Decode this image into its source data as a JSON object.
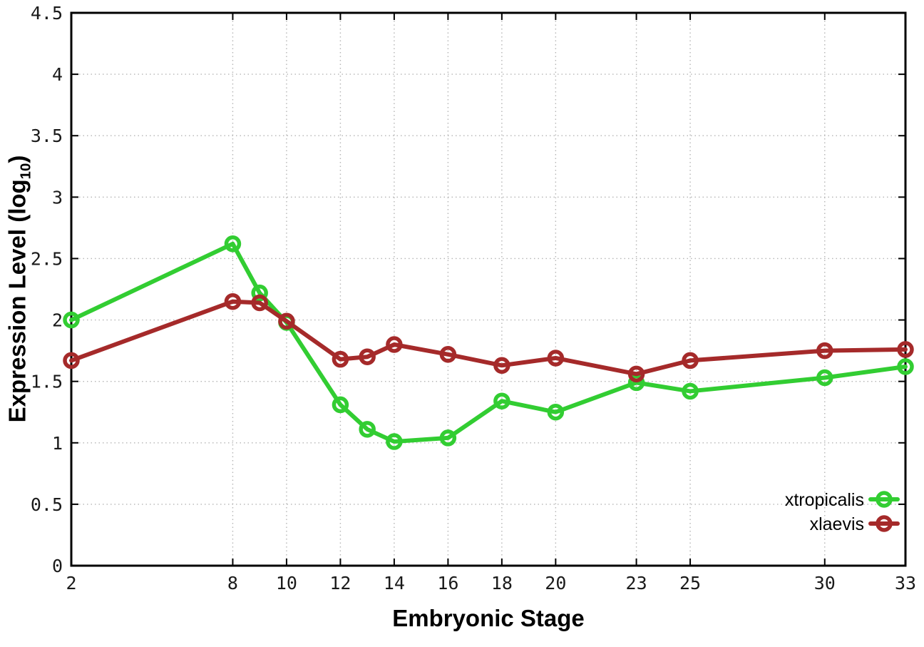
{
  "labels": {
    "xlabel": "Embryonic Stage",
    "ylabel_pre": "Expression Level (log",
    "ylabel_sub": "10",
    "ylabel_post": ")"
  },
  "chart_data": {
    "type": "line",
    "title": "",
    "xlabel": "Embryonic Stage",
    "ylabel": "Expression Level (log10)",
    "xlim": [
      2,
      33
    ],
    "ylim": [
      0,
      4.5
    ],
    "grid": true,
    "legend_position": "bottom-right-inside",
    "x_ticks": [
      2,
      8,
      10,
      12,
      14,
      16,
      18,
      20,
      23,
      25,
      30,
      33
    ],
    "y_ticks": [
      0,
      0.5,
      1,
      1.5,
      2,
      2.5,
      3,
      3.5,
      4,
      4.5
    ],
    "x": [
      2,
      8,
      9,
      10,
      12,
      13,
      14,
      16,
      18,
      20,
      23,
      25,
      30,
      33
    ],
    "series": [
      {
        "name": "xtropicalis",
        "color": "#32cd32",
        "values": [
          2.0,
          2.62,
          2.22,
          1.98,
          1.31,
          1.11,
          1.01,
          1.04,
          1.34,
          1.25,
          1.49,
          1.42,
          1.53,
          1.62
        ]
      },
      {
        "name": "xlaevis",
        "color": "#a52a2a",
        "values": [
          1.67,
          2.15,
          2.14,
          1.99,
          1.68,
          1.7,
          1.8,
          1.72,
          1.63,
          1.69,
          1.56,
          1.67,
          1.75,
          1.76
        ]
      }
    ],
    "style": {
      "grid_color": "#b5b5b5",
      "axis_color": "#000000",
      "background": "#ffffff",
      "marker": "open-circle"
    }
  }
}
